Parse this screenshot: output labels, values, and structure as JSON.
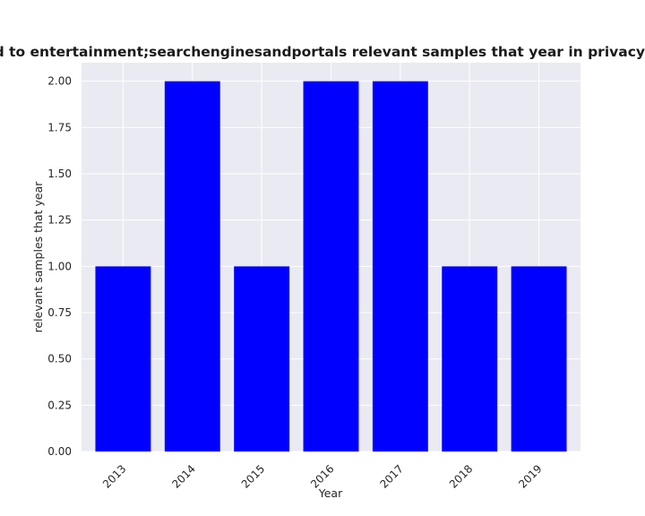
{
  "chart_data": {
    "type": "bar",
    "title": "es are related to entertainment;searchenginesandportals relevant samples that year in privacy",
    "xlabel": "Year",
    "ylabel": "relevant samples that year",
    "categories": [
      "2013",
      "2014",
      "2015",
      "2016",
      "2017",
      "2018",
      "2019"
    ],
    "values": [
      1,
      2,
      1,
      2,
      2,
      1,
      1
    ],
    "ylim": [
      0,
      2.1
    ],
    "yticks": [
      "0.00",
      "0.25",
      "0.50",
      "0.75",
      "1.00",
      "1.25",
      "1.50",
      "1.75",
      "2.00"
    ],
    "grid": true,
    "bar_color": "#0000ff",
    "plot_background": "#eaeaf2",
    "grid_color": "#ffffff"
  }
}
